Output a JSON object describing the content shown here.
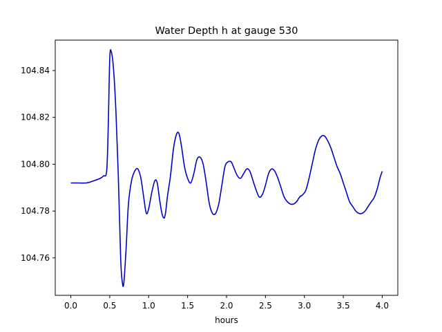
{
  "chart_data": {
    "type": "line",
    "title": "Water Depth h at gauge 530",
    "xlabel": "hours",
    "ylabel": "",
    "xlim": [
      -0.2,
      4.2
    ],
    "ylim": [
      104.744,
      104.853
    ],
    "xticks": [
      0.0,
      0.5,
      1.0,
      1.5,
      2.0,
      2.5,
      3.0,
      3.5,
      4.0
    ],
    "xtick_labels": [
      "0.0",
      "0.5",
      "1.0",
      "1.5",
      "2.0",
      "2.5",
      "3.0",
      "3.5",
      "4.0"
    ],
    "yticks": [
      104.76,
      104.78,
      104.8,
      104.82,
      104.84
    ],
    "ytick_labels": [
      "104.76",
      "104.78",
      "104.80",
      "104.82",
      "104.84"
    ],
    "grid": false,
    "colors": {
      "line": "#0000cc",
      "axes": "#000000"
    },
    "series": [
      {
        "x": [
          0.0,
          0.1,
          0.2,
          0.3,
          0.38,
          0.42,
          0.46,
          0.48,
          0.5,
          0.52,
          0.55,
          0.58,
          0.61,
          0.64,
          0.66,
          0.68,
          0.71,
          0.74,
          0.78,
          0.82,
          0.86,
          0.9,
          0.94,
          0.97,
          1.0,
          1.04,
          1.08,
          1.11,
          1.14,
          1.17,
          1.2,
          1.22,
          1.24,
          1.28,
          1.32,
          1.36,
          1.39,
          1.42,
          1.46,
          1.5,
          1.54,
          1.58,
          1.62,
          1.66,
          1.7,
          1.74,
          1.78,
          1.82,
          1.86,
          1.9,
          1.94,
          1.98,
          2.02,
          2.06,
          2.1,
          2.14,
          2.18,
          2.22,
          2.26,
          2.3,
          2.34,
          2.38,
          2.42,
          2.46,
          2.5,
          2.54,
          2.58,
          2.62,
          2.66,
          2.7,
          2.74,
          2.78,
          2.82,
          2.86,
          2.9,
          2.94,
          2.98,
          3.02,
          3.06,
          3.1,
          3.14,
          3.18,
          3.22,
          3.26,
          3.3,
          3.34,
          3.38,
          3.42,
          3.46,
          3.5,
          3.54,
          3.58,
          3.62,
          3.66,
          3.7,
          3.74,
          3.78,
          3.82,
          3.86,
          3.9,
          3.94,
          3.97,
          4.0
        ],
        "y": [
          104.792,
          104.792,
          104.792,
          104.793,
          104.794,
          104.795,
          104.797,
          104.815,
          104.845,
          104.848,
          104.84,
          104.822,
          104.795,
          104.76,
          104.75,
          104.749,
          104.764,
          104.783,
          104.793,
          104.797,
          104.798,
          104.794,
          104.785,
          104.779,
          104.781,
          104.788,
          104.793,
          104.792,
          104.785,
          104.779,
          104.777,
          104.78,
          104.786,
          104.795,
          104.807,
          104.813,
          104.813,
          104.808,
          104.799,
          104.794,
          104.792,
          104.796,
          104.802,
          104.803,
          104.8,
          104.792,
          104.783,
          104.779,
          104.779,
          104.783,
          104.791,
          104.799,
          104.801,
          104.801,
          104.798,
          104.795,
          104.794,
          104.796,
          104.798,
          104.797,
          104.793,
          104.789,
          104.786,
          104.787,
          104.791,
          104.796,
          104.798,
          104.797,
          104.794,
          104.79,
          104.786,
          104.784,
          104.783,
          104.783,
          104.784,
          104.786,
          104.787,
          104.789,
          104.794,
          104.8,
          104.806,
          104.81,
          104.812,
          104.812,
          104.81,
          104.807,
          104.803,
          104.799,
          104.796,
          104.792,
          104.788,
          104.784,
          104.782,
          104.78,
          104.779,
          104.779,
          104.78,
          104.782,
          104.784,
          104.786,
          104.79,
          104.794,
          104.797
        ]
      }
    ]
  }
}
